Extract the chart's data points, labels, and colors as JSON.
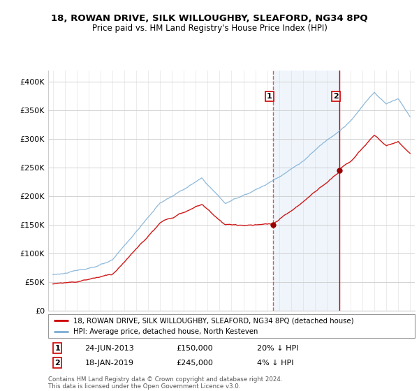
{
  "title": "18, ROWAN DRIVE, SILK WILLOUGHBY, SLEAFORD, NG34 8PQ",
  "subtitle": "Price paid vs. HM Land Registry's House Price Index (HPI)",
  "legend_line1": "18, ROWAN DRIVE, SILK WILLOUGHBY, SLEAFORD, NG34 8PQ (detached house)",
  "legend_line2": "HPI: Average price, detached house, North Kesteven",
  "annotation1_label": "1",
  "annotation1_date": "24-JUN-2013",
  "annotation1_price": "£150,000",
  "annotation1_hpi": "20% ↓ HPI",
  "annotation2_label": "2",
  "annotation2_date": "18-JAN-2019",
  "annotation2_price": "£245,000",
  "annotation2_hpi": "4% ↓ HPI",
  "footer": "Contains HM Land Registry data © Crown copyright and database right 2024.\nThis data is licensed under the Open Government Licence v3.0.",
  "price_color": "#cc0000",
  "hpi_color": "#7aadd4",
  "vline1_color": "#cc4444",
  "vline2_color": "#cc0000",
  "highlight_color": "#ddeeff",
  "ylim": [
    0,
    420000
  ],
  "yticks": [
    0,
    50000,
    100000,
    150000,
    200000,
    250000,
    300000,
    350000,
    400000
  ],
  "ytick_labels": [
    "£0",
    "£50K",
    "£100K",
    "£150K",
    "£200K",
    "£250K",
    "£300K",
    "£350K",
    "£400K"
  ],
  "sale1_year": 2013.48,
  "sale1_value": 150000,
  "sale2_year": 2019.05,
  "sale2_value": 245000
}
